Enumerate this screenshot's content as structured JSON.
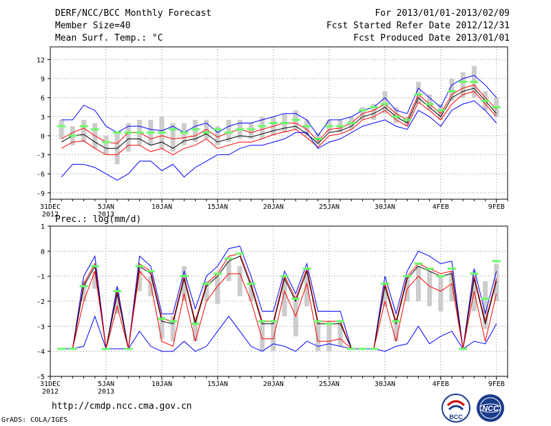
{
  "header": {
    "title": "DERF/NCC/BCC Monthly Forecast",
    "member_size": "Member Size=40",
    "variable": "Mean Surf. Temp.: °C",
    "for_period": "For 2013/01/01-2013/02/09",
    "fcst_started": "Fcst Started Refer Date 2012/12/31",
    "fcst_produced": "Fcst Produced Date 2013/01/01"
  },
  "footer": {
    "url": "http://cmdp.ncc.cma.gov.cn",
    "grads": "GrADS: COLA/IGES",
    "bcc_logo_text": "BCC",
    "ncc_logo_text": "NCC"
  },
  "colors": {
    "ensemble_mean": "#000000",
    "spread_lines": "#ff0000",
    "extreme_lines": "#0000ff",
    "box": "#cccccc",
    "marker": "#66ff66"
  },
  "chart_data": [
    {
      "type": "line",
      "title": "Mean Surf. Temp.: °C",
      "ylim": [
        -10,
        14
      ],
      "yticks": [
        12,
        9,
        6,
        3,
        0,
        -3,
        -6,
        -9
      ],
      "xticks": [
        {
          "day": 0,
          "label": "31DEC",
          "sub": "2012"
        },
        {
          "day": 5,
          "label": "5JAN",
          "sub": "2013"
        },
        {
          "day": 10,
          "label": "10JAN",
          "sub": ""
        },
        {
          "day": 15,
          "label": "15JAN",
          "sub": ""
        },
        {
          "day": 20,
          "label": "20JAN",
          "sub": ""
        },
        {
          "day": 25,
          "label": "25JAN",
          "sub": ""
        },
        {
          "day": 30,
          "label": "30JAN",
          "sub": ""
        },
        {
          "day": 35,
          "label": "4FEB",
          "sub": ""
        },
        {
          "day": 40,
          "label": "9FEB",
          "sub": ""
        }
      ],
      "x": [
        1,
        2,
        3,
        4,
        5,
        6,
        7,
        8,
        9,
        10,
        11,
        12,
        13,
        14,
        15,
        16,
        17,
        18,
        19,
        20,
        21,
        22,
        23,
        24,
        25,
        26,
        27,
        28,
        29,
        30,
        31,
        32,
        33,
        34,
        35,
        36,
        37,
        38,
        39,
        40
      ],
      "series": [
        {
          "name": "max",
          "values": [
            2.5,
            2.5,
            4.8,
            4,
            1.5,
            0.5,
            1.5,
            1.5,
            1,
            0.8,
            1.5,
            0.5,
            1.5,
            2,
            0.5,
            1.5,
            2,
            2,
            2.5,
            3,
            3.5,
            3.5,
            2.5,
            0,
            2.5,
            2.5,
            3,
            4,
            4.5,
            6,
            4,
            3.5,
            7.5,
            6,
            4.5,
            8,
            9,
            9.5,
            8,
            6
          ]
        },
        {
          "name": "upper",
          "values": [
            -0.5,
            0.5,
            1.2,
            0,
            -1,
            -1.2,
            0.5,
            0.5,
            -0.5,
            0,
            -0.5,
            -0.3,
            0,
            1,
            -0.2,
            0.5,
            1,
            0.5,
            1,
            1.5,
            2,
            2,
            1,
            -0.8,
            1,
            1.2,
            2,
            3.5,
            4,
            5,
            3.5,
            2.5,
            6.5,
            5,
            3.5,
            6.5,
            7.5,
            8,
            6,
            4.2
          ]
        },
        {
          "name": "mean",
          "values": [
            -1,
            0,
            0.2,
            -1,
            -2,
            -2,
            -0.5,
            -0.5,
            -1.5,
            -1,
            -2,
            -0.8,
            -0.5,
            0.3,
            -1,
            -0.5,
            0,
            -0.2,
            0.3,
            0.8,
            1.2,
            1.5,
            0.3,
            -1.2,
            0.5,
            0.8,
            1.5,
            3,
            3.5,
            4.5,
            3,
            2,
            6,
            4.5,
            3,
            6,
            7,
            7.5,
            5.5,
            3.5
          ]
        },
        {
          "name": "lower",
          "values": [
            -2,
            -1,
            -0.8,
            -2,
            -3,
            -3,
            -1.5,
            -1.5,
            -2.5,
            -2,
            -3,
            -2,
            -1.5,
            -0.5,
            -2,
            -1.5,
            -1,
            -1,
            -0.5,
            0.2,
            0.6,
            1,
            -0.3,
            -1.8,
            0,
            0.3,
            1,
            2.5,
            3,
            4,
            2.5,
            1.5,
            5.3,
            4,
            2.5,
            5,
            6.5,
            7,
            5,
            3
          ]
        },
        {
          "name": "min",
          "values": [
            -6.5,
            -4.5,
            -4.5,
            -5,
            -6,
            -7,
            -6,
            -4,
            -4,
            -5.5,
            -4.5,
            -6.5,
            -5,
            -4,
            -3,
            -3,
            -2,
            -1.5,
            -1.5,
            -1,
            -0.5,
            0.5,
            0.5,
            -2,
            -1,
            -0.5,
            0.5,
            1.5,
            2,
            2.5,
            1.5,
            1,
            4,
            3,
            1.5,
            4,
            5,
            5.5,
            4,
            2
          ]
        },
        {
          "name": "marker",
          "values": [
            1.5,
            0,
            1.5,
            1,
            -1,
            0.5,
            0.5,
            0.5,
            0.5,
            0.5,
            1,
            0.5,
            1,
            0.5,
            1,
            0.5,
            1,
            1,
            1.5,
            2,
            2,
            2.5,
            1.5,
            -0.5,
            1.5,
            1.5,
            2,
            4,
            4.5,
            5,
            3,
            2.5,
            6.5,
            5,
            4,
            7,
            8.5,
            8.5,
            5.5,
            4.5
          ]
        }
      ],
      "boxes": [
        [
          -0.5,
          2.5
        ],
        [
          -1.5,
          1.5
        ],
        [
          -1,
          2.5
        ],
        [
          -2,
          2
        ],
        [
          -3,
          0
        ],
        [
          -4.5,
          0.5
        ],
        [
          -2.5,
          2
        ],
        [
          -1.5,
          2.5
        ],
        [
          -1.5,
          2.5
        ],
        [
          -2,
          3
        ],
        [
          -2.5,
          2
        ],
        [
          -1.5,
          2
        ],
        [
          -1,
          2.5
        ],
        [
          -0.5,
          2.5
        ],
        [
          -1.5,
          1.5
        ],
        [
          -1,
          2.5
        ],
        [
          -0.5,
          2.5
        ],
        [
          -0.5,
          2
        ],
        [
          -0.5,
          3
        ],
        [
          0,
          3
        ],
        [
          0.5,
          3.5
        ],
        [
          1,
          4
        ],
        [
          0,
          2.5
        ],
        [
          -1.5,
          0.5
        ],
        [
          0.5,
          2.5
        ],
        [
          0.5,
          2.5
        ],
        [
          1,
          3
        ],
        [
          2.5,
          4.5
        ],
        [
          2.5,
          5
        ],
        [
          3.5,
          7
        ],
        [
          2,
          4.5
        ],
        [
          1.5,
          3
        ],
        [
          5,
          8.5
        ],
        [
          4,
          6.5
        ],
        [
          2.5,
          5
        ],
        [
          5.5,
          9
        ],
        [
          6,
          10
        ],
        [
          6,
          11
        ],
        [
          4,
          7
        ],
        [
          3,
          6
        ]
      ]
    },
    {
      "type": "line",
      "title": "Prec.: log(mm/d)",
      "ylim": [
        -5,
        1
      ],
      "yticks": [
        1,
        0,
        -1,
        -2,
        -3,
        -4,
        -5
      ],
      "xticks": [
        {
          "day": 0,
          "label": "31DEC",
          "sub": "2012"
        },
        {
          "day": 5,
          "label": "5JAN",
          "sub": "2013"
        },
        {
          "day": 10,
          "label": "10JAN",
          "sub": ""
        },
        {
          "day": 15,
          "label": "15JAN",
          "sub": ""
        },
        {
          "day": 20,
          "label": "20JAN",
          "sub": ""
        },
        {
          "day": 25,
          "label": "25JAN",
          "sub": ""
        },
        {
          "day": 30,
          "label": "30JAN",
          "sub": ""
        },
        {
          "day": 35,
          "label": "4FEB",
          "sub": ""
        },
        {
          "day": 40,
          "label": "9FEB",
          "sub": ""
        }
      ],
      "x": [
        1,
        2,
        3,
        4,
        5,
        6,
        7,
        8,
        9,
        10,
        11,
        12,
        13,
        14,
        15,
        16,
        17,
        18,
        19,
        20,
        21,
        22,
        23,
        24,
        25,
        26,
        27,
        28,
        29,
        30,
        31,
        32,
        33,
        34,
        35,
        36,
        37,
        38,
        39,
        40
      ],
      "series": [
        {
          "name": "max",
          "values": [
            -3.9,
            -3.9,
            -1,
            -0.2,
            -3.9,
            -1.4,
            -3.9,
            -0.2,
            -0.6,
            -2.5,
            -2.5,
            -0.8,
            -2.3,
            -1,
            -0.6,
            0.1,
            0.2,
            -1,
            -2.4,
            -2.4,
            -0.8,
            -1.7,
            -0.5,
            -2.4,
            -2.4,
            -2.4,
            -3.9,
            -3.9,
            -3.9,
            -1,
            -2.5,
            -0.8,
            0,
            -0.2,
            -0.5,
            -0.4,
            -3.9,
            -0.7,
            -2.5,
            -0.8
          ]
        },
        {
          "name": "upper",
          "values": [
            -3.9,
            -3.9,
            -1.3,
            -0.5,
            -3.9,
            -1.6,
            -3.9,
            -0.5,
            -0.8,
            -2.7,
            -2.8,
            -1,
            -2.8,
            -1.3,
            -0.9,
            -0.2,
            -0.1,
            -1.3,
            -2.8,
            -2.8,
            -1,
            -1.9,
            -0.7,
            -2.8,
            -2.8,
            -2.8,
            -3.9,
            -3.9,
            -3.9,
            -1.3,
            -2.8,
            -1,
            -0.5,
            -0.7,
            -0.9,
            -0.8,
            -3.9,
            -1,
            -2.8,
            -1.1
          ]
        },
        {
          "name": "mean",
          "values": [
            -3.9,
            -3.9,
            -1.4,
            -0.6,
            -3.9,
            -1.7,
            -3.9,
            -0.6,
            -0.9,
            -2.8,
            -2.9,
            -1.1,
            -2.9,
            -1.4,
            -1,
            -0.4,
            -0.2,
            -1.4,
            -2.9,
            -2.9,
            -1.1,
            -2,
            -0.8,
            -2.9,
            -2.9,
            -2.9,
            -3.9,
            -3.9,
            -3.9,
            -1.4,
            -2.9,
            -1.1,
            -0.6,
            -0.8,
            -1,
            -0.9,
            -3.9,
            -1.1,
            -2.9,
            -1.2
          ]
        },
        {
          "name": "lower",
          "values": [
            -3.9,
            -3.9,
            -2,
            -0.8,
            -3.9,
            -2.2,
            -3.9,
            -0.8,
            -1.3,
            -3.6,
            -3.8,
            -1.7,
            -3.6,
            -2,
            -1.4,
            -0.9,
            -0.9,
            -2,
            -3.5,
            -3.5,
            -1.6,
            -2.6,
            -1.3,
            -3.6,
            -3.6,
            -3.5,
            -3.9,
            -3.9,
            -3.9,
            -2,
            -3.6,
            -1.5,
            -1,
            -1.4,
            -1.6,
            -1.3,
            -3.9,
            -1.6,
            -3.6,
            -1.7
          ]
        },
        {
          "name": "min",
          "values": [
            -3.9,
            -3.9,
            -3.8,
            -2.6,
            -3.9,
            -3.9,
            -3.9,
            -3.2,
            -3.8,
            -4,
            -4,
            -3.6,
            -4,
            -3.8,
            -3.2,
            -2.6,
            -3.2,
            -3.8,
            -4,
            -3.7,
            -3.8,
            -4,
            -3.6,
            -3.8,
            -3.7,
            -3.8,
            -3.9,
            -3.9,
            -3.9,
            -4,
            -3.8,
            -3.7,
            -3,
            -3.7,
            -3.4,
            -3.2,
            -3.9,
            -3.6,
            -3.7,
            -2.9
          ]
        },
        {
          "name": "marker",
          "values": [
            -3.9,
            -3.9,
            -1.4,
            -0.6,
            -3.9,
            -1.6,
            -3.9,
            -0.6,
            -0.8,
            -2.7,
            -2.8,
            -1,
            -2.9,
            -1.3,
            -0.9,
            -0.3,
            -0.1,
            -1.3,
            -2.8,
            -2.8,
            -1,
            -1.9,
            -0.7,
            -2.8,
            -2.9,
            -2.8,
            -3.9,
            -3.9,
            -3.9,
            -1.3,
            -2.8,
            -1,
            -0.5,
            -0.7,
            -1,
            -0.7,
            -3.9,
            -0.9,
            -1.9,
            -0.4
          ]
        }
      ],
      "boxes": [
        [
          -3.9,
          -3.9
        ],
        [
          -3.9,
          -3.9
        ],
        [
          -2,
          -1.2
        ],
        [
          -1.5,
          -0.8
        ],
        [
          -3.9,
          -3.9
        ],
        [
          -2.5,
          -1.5
        ],
        [
          -3.9,
          -3.9
        ],
        [
          -1.6,
          -0.6
        ],
        [
          -1.8,
          -1
        ],
        [
          -3.5,
          -2.6
        ],
        [
          -3.6,
          -2.6
        ],
        [
          -2,
          -0.6
        ],
        [
          -3.6,
          -2.6
        ],
        [
          -2,
          -1.2
        ],
        [
          -2.1,
          -1
        ],
        [
          -1.2,
          -0.4
        ],
        [
          -1.8,
          -0.6
        ],
        [
          -2,
          -1.2
        ],
        [
          -4,
          -2.8
        ],
        [
          -4,
          -2.8
        ],
        [
          -2.6,
          -1
        ],
        [
          -3.4,
          -1.8
        ],
        [
          -2.2,
          -0.8
        ],
        [
          -4,
          -2.8
        ],
        [
          -4,
          -2.8
        ],
        [
          -3.8,
          -2.8
        ],
        [
          -3.9,
          -3.9
        ],
        [
          -3.9,
          -3.9
        ],
        [
          -3.9,
          -3.9
        ],
        [
          -2.2,
          -1.4
        ],
        [
          -3.6,
          -2.7
        ],
        [
          -2,
          -1
        ],
        [
          -2,
          -0.6
        ],
        [
          -2.2,
          -0.8
        ],
        [
          -2.4,
          -1
        ],
        [
          -2,
          -0.8
        ],
        [
          -3.9,
          -3.9
        ],
        [
          -2.4,
          -0.8
        ],
        [
          -3.1,
          -1.2
        ],
        [
          -2,
          -0.5
        ]
      ]
    }
  ]
}
